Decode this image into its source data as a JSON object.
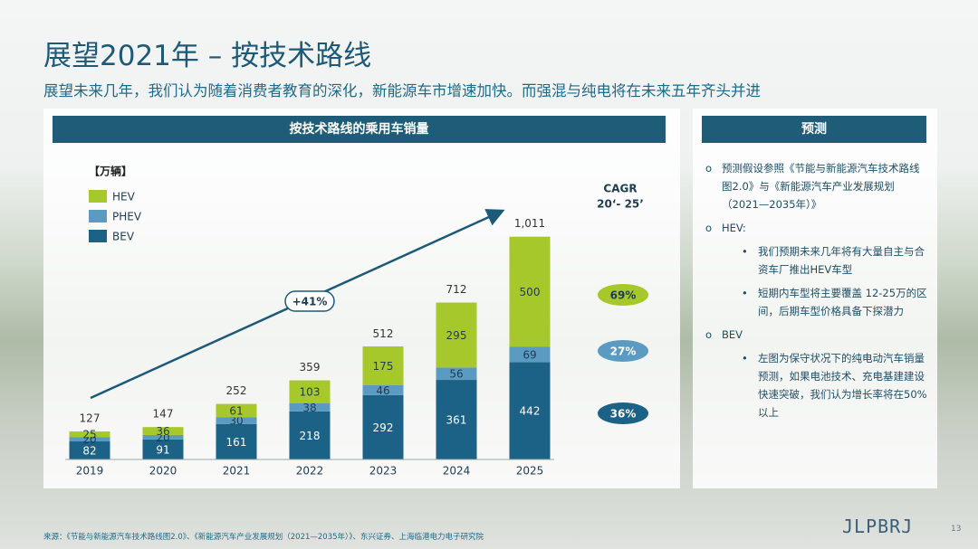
{
  "header": {
    "title": "展望2021年 – 按技术路线",
    "subtitle": "展望未来几年，我们认为随着消费者教育的深化，新能源车市增速加快。而强混与纯电将在未来五年齐头并进"
  },
  "chart_data": {
    "type": "bar",
    "stacked": true,
    "title": "按技术路线的乘用车销量",
    "unit": "【万辆】",
    "categories": [
      "2019",
      "2020",
      "2021",
      "2022",
      "2023",
      "2024",
      "2025"
    ],
    "series": [
      {
        "name": "BEV",
        "color": "#1b6286",
        "values": [
          82,
          91,
          161,
          218,
          292,
          361,
          442
        ]
      },
      {
        "name": "PHEV",
        "color": "#5b9bc2",
        "values": [
          20,
          20,
          30,
          38,
          46,
          56,
          69
        ]
      },
      {
        "name": "HEV",
        "color": "#a6c82a",
        "values": [
          25,
          36,
          61,
          103,
          175,
          295,
          500
        ]
      }
    ],
    "totals": {
      "values": [
        127,
        147,
        252,
        359,
        512,
        712,
        1011
      ],
      "value_labels": [
        "127",
        "147",
        "252",
        "359",
        "512",
        "712",
        "1,011"
      ]
    },
    "ylim": [
      0,
      1100
    ],
    "annotation": {
      "value": 41,
      "label": "+41%"
    },
    "cagr": {
      "title": "CAGR",
      "period": "20‘- 25’",
      "values": [
        69,
        27,
        36
      ],
      "value_labels": [
        "69%",
        "27%",
        "36%"
      ],
      "colors": [
        "#a6c82a",
        "#5b9bc2",
        "#1b6286"
      ]
    }
  },
  "forecast": {
    "title": "预测",
    "items": [
      {
        "text": "预测假设参照《节能与新能源汽车技术路线图2.0》与《新能源汽车产业发展规划（2021—2035年）》",
        "subitems": []
      },
      {
        "text": "HEV:",
        "subitems": [
          "我们预期未来几年将有大量自主与合资车厂推出HEV车型",
          "短期内车型将主要覆盖 12-25万的区间，后期车型价格具备下探潜力"
        ]
      },
      {
        "text": "BEV",
        "subitems": [
          "左图为保守状况下的纯电动汽车销量预测，如果电池技术、充电基建建设快速突破，我们认为增长率将在50%以上"
        ]
      }
    ]
  },
  "footer": {
    "source": "来源：《节能与新能源汽车技术路线图2.0》、《新能源汽车产业发展规划（2021—2035年）》、东兴证券、上海临港电力电子研究院",
    "page": "13",
    "logo": "JLPBRJ"
  }
}
